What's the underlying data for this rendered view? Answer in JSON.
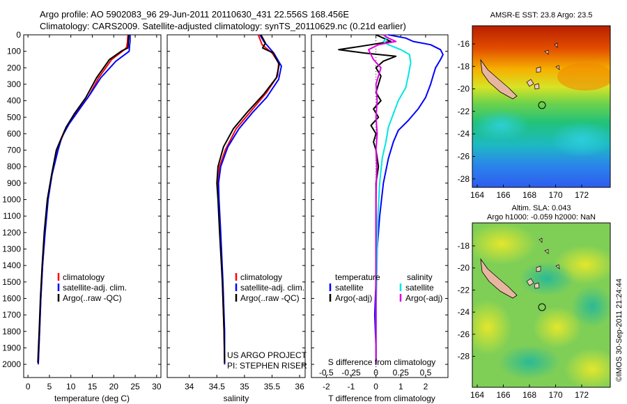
{
  "title": {
    "line1": "Argo profile: AO 5902083_96 29-Jun-2011 20110630_431 22.556S 168.456E",
    "line2": "Climatology: CARS2009. Satellite-adjusted climatology: synTS_20110629.nc (0.21d earlier)"
  },
  "colors": {
    "climatology": "#ff0000",
    "satellite": "#0000ff",
    "argo": "#000000",
    "argo_adj_s": "#e000e0",
    "satellite_s": "#00e5e5"
  },
  "chart_data": [
    {
      "type": "line",
      "id": "temperature",
      "xlabel": "temperature (deg C)",
      "ylabel": "",
      "xlim": [
        -1,
        31
      ],
      "ylim": [
        0,
        2080
      ],
      "xticks": [
        0,
        5,
        10,
        15,
        20,
        25,
        30
      ],
      "yticks": [
        0,
        100,
        200,
        300,
        400,
        500,
        600,
        700,
        800,
        900,
        1000,
        1100,
        1200,
        1300,
        1400,
        1500,
        1600,
        1700,
        1800,
        1900,
        2000
      ],
      "legend": [
        "climatology",
        "satellite-adj. clim.",
        "Argo(..raw -QC)"
      ],
      "series": [
        {
          "name": "climatology",
          "color": "#ff0000",
          "points": [
            [
              23.3,
              0
            ],
            [
              23.2,
              40
            ],
            [
              23.0,
              75
            ],
            [
              22.5,
              90
            ],
            [
              19.5,
              150
            ],
            [
              16.5,
              260
            ],
            [
              14.0,
              380
            ],
            [
              11.0,
              480
            ],
            [
              9.0,
              560
            ],
            [
              7.5,
              650
            ],
            [
              6.8,
              700
            ],
            [
              5.6,
              850
            ],
            [
              4.6,
              1000
            ],
            [
              3.9,
              1200
            ],
            [
              3.4,
              1400
            ],
            [
              3.0,
              1600
            ],
            [
              2.7,
              1800
            ],
            [
              2.4,
              2000
            ]
          ]
        },
        {
          "name": "satellite-adj. clim.",
          "color": "#0000ff",
          "points": [
            [
              23.8,
              0
            ],
            [
              23.8,
              40
            ],
            [
              23.7,
              60
            ],
            [
              23.6,
              100
            ],
            [
              20.5,
              160
            ],
            [
              17.0,
              260
            ],
            [
              14.5,
              360
            ],
            [
              11.5,
              470
            ],
            [
              9.6,
              540
            ],
            [
              7.9,
              620
            ],
            [
              7.0,
              700
            ],
            [
              5.6,
              850
            ],
            [
              4.7,
              1000
            ],
            [
              4.0,
              1200
            ],
            [
              3.4,
              1400
            ],
            [
              3.0,
              1600
            ],
            [
              2.7,
              1800
            ],
            [
              2.4,
              2000
            ]
          ]
        },
        {
          "name": "Argo(..raw -QC)",
          "color": "#000000",
          "points": [
            [
              23.5,
              0
            ],
            [
              23.4,
              40
            ],
            [
              23.3,
              80
            ],
            [
              22.0,
              95
            ],
            [
              19.0,
              150
            ],
            [
              16.0,
              260
            ],
            [
              13.5,
              380
            ],
            [
              10.8,
              480
            ],
            [
              8.9,
              560
            ],
            [
              7.4,
              650
            ],
            [
              6.6,
              700
            ],
            [
              5.5,
              850
            ],
            [
              4.5,
              1000
            ],
            [
              3.8,
              1200
            ],
            [
              3.3,
              1400
            ],
            [
              2.9,
              1600
            ],
            [
              2.6,
              1800
            ],
            [
              2.3,
              1990
            ]
          ]
        }
      ]
    },
    {
      "type": "line",
      "id": "salinity",
      "xlabel": "salinity",
      "ylabel": "",
      "xlim": [
        33.6,
        36.1
      ],
      "ylim": [
        0,
        2080
      ],
      "xticks": [
        34,
        34.5,
        35,
        35.5,
        36
      ],
      "legend": [
        "climatology",
        "satellite-adj. clim.",
        "Argo(..raw -QC)"
      ],
      "annotations": [
        "US ARGO PROJECT",
        "PI: STEPHEN RISER"
      ],
      "series": [
        {
          "name": "climatology",
          "color": "#ff0000",
          "points": [
            [
              35.25,
              0
            ],
            [
              35.32,
              60
            ],
            [
              35.5,
              110
            ],
            [
              35.62,
              170
            ],
            [
              35.6,
              250
            ],
            [
              35.4,
              350
            ],
            [
              35.1,
              470
            ],
            [
              34.85,
              570
            ],
            [
              34.65,
              700
            ],
            [
              34.55,
              800
            ],
            [
              34.52,
              900
            ],
            [
              34.53,
              1000
            ],
            [
              34.56,
              1200
            ],
            [
              34.6,
              1500
            ],
            [
              34.63,
              1800
            ],
            [
              34.64,
              2000
            ]
          ]
        },
        {
          "name": "satellite-adj. clim.",
          "color": "#0000ff",
          "points": [
            [
              35.28,
              0
            ],
            [
              35.35,
              40
            ],
            [
              35.53,
              110
            ],
            [
              35.67,
              190
            ],
            [
              35.62,
              270
            ],
            [
              35.4,
              380
            ],
            [
              35.15,
              470
            ],
            [
              34.9,
              570
            ],
            [
              34.7,
              680
            ],
            [
              34.57,
              800
            ],
            [
              34.53,
              900
            ],
            [
              34.54,
              1000
            ],
            [
              34.57,
              1200
            ],
            [
              34.61,
              1500
            ],
            [
              34.64,
              1800
            ],
            [
              34.64,
              2000
            ]
          ]
        },
        {
          "name": "Argo(..raw -QC)",
          "color": "#000000",
          "points": [
            [
              35.3,
              0
            ],
            [
              35.38,
              50
            ],
            [
              35.33,
              80
            ],
            [
              35.52,
              110
            ],
            [
              35.63,
              180
            ],
            [
              35.58,
              260
            ],
            [
              35.35,
              360
            ],
            [
              35.05,
              470
            ],
            [
              34.8,
              570
            ],
            [
              34.62,
              680
            ],
            [
              34.52,
              800
            ],
            [
              34.5,
              900
            ],
            [
              34.52,
              1000
            ],
            [
              34.55,
              1200
            ],
            [
              34.6,
              1500
            ],
            [
              34.63,
              1800
            ],
            [
              34.64,
              1990
            ]
          ]
        }
      ]
    },
    {
      "type": "line",
      "id": "differences",
      "xlabel": "T difference from climatology",
      "xlabel2": "S difference from climatology",
      "xlim": [
        -2.6,
        2.9
      ],
      "ylim": [
        0,
        2080
      ],
      "xticks": [
        -2,
        -1,
        0,
        1,
        2
      ],
      "xticks_s": [
        "-0.5",
        "-0.25",
        "0",
        "0.25",
        "0.5"
      ],
      "legend_headers": [
        "temperature",
        "salinity"
      ],
      "legend": [
        "satellite",
        "Argo(-adj)",
        "satellite",
        "Argo(-adj)"
      ],
      "series": [
        {
          "name": "temperature satellite",
          "color": "#0000ff",
          "points": [
            [
              0.5,
              0
            ],
            [
              1.2,
              20
            ],
            [
              1.5,
              40
            ],
            [
              2.2,
              60
            ],
            [
              2.6,
              90
            ],
            [
              2.7,
              120
            ],
            [
              2.6,
              150
            ],
            [
              2.4,
              200
            ],
            [
              2.3,
              250
            ],
            [
              2.2,
              300
            ],
            [
              2.0,
              380
            ],
            [
              1.7,
              450
            ],
            [
              1.3,
              520
            ],
            [
              0.9,
              580
            ],
            [
              0.7,
              650
            ],
            [
              0.5,
              750
            ],
            [
              0.3,
              900
            ],
            [
              0.15,
              1100
            ],
            [
              0.05,
              1300
            ],
            [
              0.0,
              1500
            ],
            [
              -0.05,
              1700
            ],
            [
              0.0,
              1900
            ],
            [
              0.0,
              2000
            ]
          ]
        },
        {
          "name": "temperature Argo(-adj)",
          "color": "#000000",
          "points": [
            [
              0.0,
              0
            ],
            [
              0.3,
              20
            ],
            [
              0.6,
              40
            ],
            [
              -0.2,
              60
            ],
            [
              -1.5,
              90
            ],
            [
              -0.5,
              110
            ],
            [
              0.8,
              130
            ],
            [
              0.3,
              160
            ],
            [
              0.0,
              200
            ],
            [
              0.2,
              250
            ],
            [
              0.1,
              300
            ],
            [
              0.0,
              350
            ],
            [
              0.2,
              400
            ],
            [
              -0.1,
              450
            ],
            [
              0.1,
              500
            ],
            [
              -0.2,
              550
            ],
            [
              0.0,
              600
            ],
            [
              -0.1,
              650
            ],
            [
              0.0,
              700
            ],
            [
              0.1,
              800
            ],
            [
              0.0,
              900
            ],
            [
              0.0,
              1000
            ],
            [
              0.0,
              1500
            ],
            [
              0.0,
              2000
            ]
          ]
        },
        {
          "name": "salinity satellite",
          "color": "#00e5e5",
          "points": [
            [
              0.3,
              0
            ],
            [
              0.45,
              20
            ],
            [
              0.3,
              40
            ],
            [
              0.5,
              60
            ],
            [
              1.0,
              90
            ],
            [
              1.35,
              120
            ],
            [
              1.4,
              170
            ],
            [
              1.3,
              250
            ],
            [
              1.2,
              320
            ],
            [
              0.9,
              400
            ],
            [
              0.7,
              480
            ],
            [
              0.5,
              560
            ],
            [
              0.4,
              650
            ],
            [
              0.25,
              750
            ],
            [
              0.15,
              900
            ],
            [
              0.08,
              1100
            ],
            [
              0.04,
              1400
            ],
            [
              0.0,
              1700
            ],
            [
              0.0,
              2000
            ]
          ]
        },
        {
          "name": "salinity Argo(-adj)",
          "color": "#e000e0",
          "points": [
            [
              0.3,
              0
            ],
            [
              0.5,
              20
            ],
            [
              0.8,
              40
            ],
            [
              0.1,
              60
            ],
            [
              -0.3,
              90
            ],
            [
              -0.2,
              120
            ],
            [
              -0.1,
              150
            ],
            [
              0.2,
              200
            ],
            [
              0.1,
              250
            ],
            [
              0.0,
              300
            ],
            [
              0.05,
              400
            ],
            [
              0.0,
              500
            ],
            [
              0.05,
              600
            ],
            [
              0.0,
              700
            ],
            [
              0.03,
              800
            ],
            [
              0.0,
              1000
            ],
            [
              0.0,
              1500
            ],
            [
              0.0,
              2000
            ]
          ]
        }
      ]
    }
  ],
  "maps": {
    "top": {
      "title": "AMSR-E SST: 23.8 Argo: 23.5",
      "xticks": [
        "164",
        "166",
        "168",
        "170",
        "172"
      ],
      "yticks": [
        "-16",
        "-18",
        "-20",
        "-22",
        "-24",
        "-26",
        "-28"
      ]
    },
    "bottom": {
      "title_line1": "Altim. SLA: 0.043",
      "title_line2": "Argo h1000: -0.059 h2000: NaN",
      "xticks": [
        "164",
        "166",
        "168",
        "170",
        "172"
      ],
      "yticks": [
        "-18",
        "-20",
        "-22",
        "-24",
        "-26",
        "-28"
      ]
    },
    "credit": "©IMOS 30-Sep-2011 21:24:44"
  }
}
